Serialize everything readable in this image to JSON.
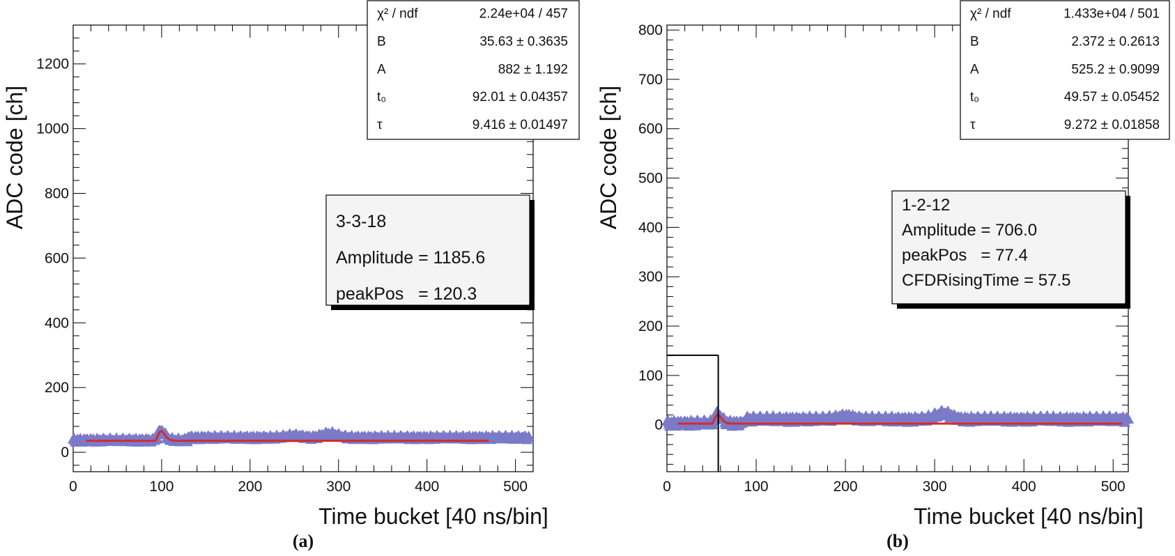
{
  "colors": {
    "marker": "#7a7ac8",
    "fit": "#d42a2a",
    "axis": "#000000"
  },
  "chart_data": [
    {
      "type": "scatter",
      "caption": "(a)",
      "xlabel": "Time bucket [40 ns/bin]",
      "ylabel": "ADC code [ch]",
      "xlim": [
        0,
        520
      ],
      "ylim": [
        -60,
        1320
      ],
      "xticks": [
        0,
        100,
        200,
        300,
        400,
        500
      ],
      "yticks": [
        0,
        200,
        400,
        600,
        800,
        1000,
        1200
      ],
      "grid": false,
      "stats": [
        {
          "name": "χ² / ndf",
          "value": "2.24e+04 / 457"
        },
        {
          "name": "B",
          "value": "35.63 ± 0.3635"
        },
        {
          "name": "A",
          "value": "882 ± 1.192"
        },
        {
          "name": "t₀",
          "value": "92.01 ± 0.04357"
        },
        {
          "name": "τ",
          "value": "9.416 ± 0.01497"
        }
      ],
      "info": [
        "3-3-18",
        "Amplitude = 1185.6",
        "peakPos   = 120.3"
      ],
      "fit": {
        "B": 35.63,
        "A": 882,
        "t0": 92.01,
        "tau": 9.416,
        "range": [
          15,
          470
        ]
      },
      "data_range": [
        0,
        515
      ],
      "baseline_bumps": [
        {
          "x": 290,
          "h": 12
        },
        {
          "x": 250,
          "h": 6
        }
      ]
    },
    {
      "type": "scatter",
      "caption": "(b)",
      "xlabel": "Time bucket [40 ns/bin]",
      "ylabel": "ADC code [ch]",
      "xlim": [
        0,
        517
      ],
      "ylim": [
        -95,
        810
      ],
      "xticks": [
        0,
        100,
        200,
        300,
        400,
        500
      ],
      "yticks": [
        0,
        100,
        200,
        300,
        400,
        500,
        600,
        700,
        800
      ],
      "grid": false,
      "stats": [
        {
          "name": "χ² / ndf",
          "value": "1.433e+04 / 501"
        },
        {
          "name": "B",
          "value": "2.372 ± 0.2613"
        },
        {
          "name": "A",
          "value": "525.2 ± 0.9099"
        },
        {
          "name": "t₀",
          "value": "49.57 ± 0.05452"
        },
        {
          "name": "τ",
          "value": "9.272 ± 0.01858"
        }
      ],
      "info": [
        "1-2-12",
        "Amplitude = 706.0",
        "peakPos   = 77.4",
        "CFDRisingTime = 57.5"
      ],
      "fit": {
        "B": 2.372,
        "A": 525.2,
        "t0": 49.57,
        "tau": 9.272,
        "range": [
          12,
          510
        ]
      },
      "data_range": [
        0,
        517
      ],
      "baseline_bumps": [
        {
          "x": 310,
          "h": 12
        },
        {
          "x": 200,
          "h": 6
        }
      ],
      "cfd": {
        "x": 57.5,
        "y": 141
      }
    }
  ]
}
